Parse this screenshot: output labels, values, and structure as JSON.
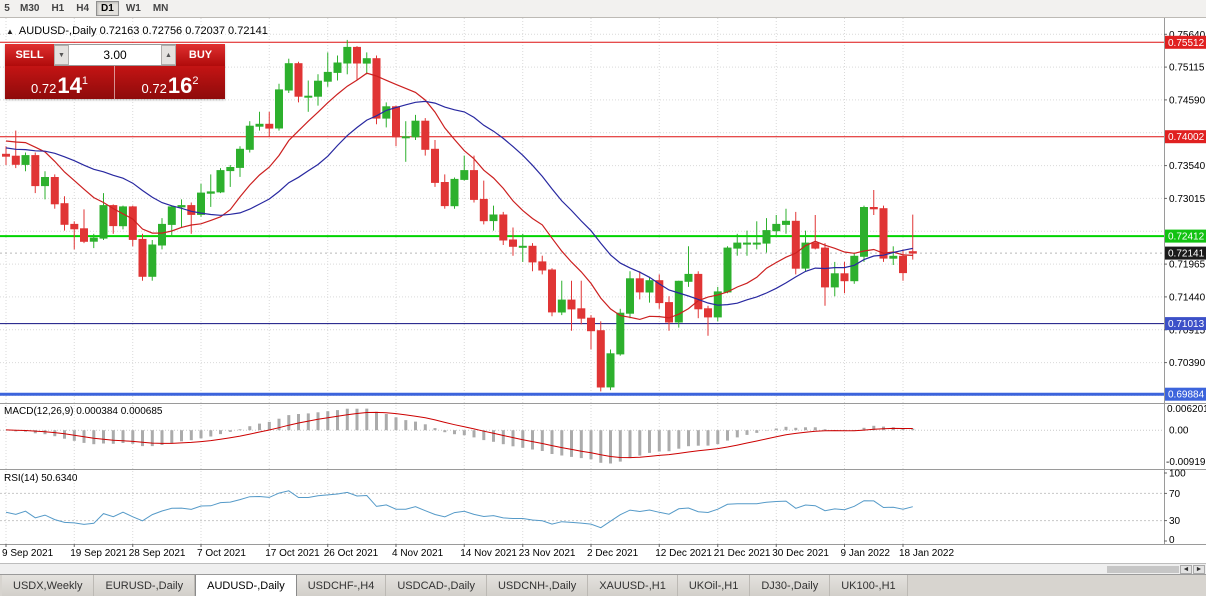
{
  "toolbar": {
    "timeframes": [
      {
        "label": "5",
        "active": false
      },
      {
        "label": "M30",
        "active": false
      },
      {
        "label": "H1",
        "active": false
      },
      {
        "label": "H4",
        "active": false
      },
      {
        "label": "D1",
        "active": true
      },
      {
        "label": "W1",
        "active": false
      },
      {
        "label": "MN",
        "active": false
      }
    ]
  },
  "header": {
    "collapse_icon": "▲",
    "symbol": "AUDUSD-,Daily",
    "open": "0.72163",
    "high": "0.72756",
    "low": "0.72037",
    "close": "0.72141",
    "title_line": "AUDUSD-,Daily 0.72163 0.72756 0.72037 0.72141"
  },
  "one_click": {
    "sell_label": "SELL",
    "buy_label": "BUY",
    "volume": "3.00",
    "volume_down_icon": "▼",
    "volume_up_icon": "▲",
    "sell_price": {
      "base": "0.72",
      "big": "14",
      "sup": "1"
    },
    "buy_price": {
      "base": "0.72",
      "big": "16",
      "sup": "2"
    }
  },
  "price_axis": {
    "labels": [
      {
        "text": "0.75640",
        "price": 0.7564
      },
      {
        "text": "0.75115",
        "price": 0.75115
      },
      {
        "text": "0.74590",
        "price": 0.7459
      },
      {
        "text": "0.73540",
        "price": 0.7354
      },
      {
        "text": "0.73015",
        "price": 0.73015
      },
      {
        "text": "0.71965",
        "price": 0.71965
      },
      {
        "text": "0.71440",
        "price": 0.7144
      },
      {
        "text": "0.70915",
        "price": 0.70915
      },
      {
        "text": "0.70390",
        "price": 0.7039
      }
    ],
    "grid_prices": [
      0.7564,
      0.75115,
      0.7459,
      0.74065,
      0.7354,
      0.73015,
      0.7249,
      0.71965,
      0.7144,
      0.70915,
      0.7039,
      0.69865
    ],
    "badges": [
      {
        "text": "0.75512",
        "price": 0.75512,
        "color": "#e02020"
      },
      {
        "text": "0.74002",
        "price": 0.74002,
        "color": "#e02020"
      },
      {
        "text": "0.72412",
        "price": 0.72412,
        "color": "#12c212"
      },
      {
        "text": "0.72141",
        "price": 0.72141,
        "color": "#1a1a1a"
      },
      {
        "text": "0.71013",
        "price": 0.71013,
        "color": "#3c50c8"
      },
      {
        "text": "0.69884",
        "price": 0.69884,
        "color": "#3c64dc"
      }
    ]
  },
  "levels": [
    {
      "price": 0.75512,
      "color": "#dd1111",
      "width": 1
    },
    {
      "price": 0.74002,
      "color": "#dd1111",
      "width": 1
    },
    {
      "price": 0.72412,
      "color": "#00d400",
      "width": 2
    },
    {
      "price": 0.71013,
      "color": "#101080",
      "width": 1
    },
    {
      "price": 0.69884,
      "color": "#3c64dc",
      "width": 3
    }
  ],
  "bid_line": {
    "price": 0.72141,
    "color": "#b8b8b8"
  },
  "chart_data": {
    "type": "candlestick",
    "symbol": "AUDUSD-",
    "timeframe": "Daily",
    "last_ohlc": {
      "open": 0.72163,
      "high": 0.72756,
      "low": 0.72037,
      "close": 0.72141
    },
    "price_axis_range": [
      0.6976,
      0.759
    ],
    "colors": {
      "up": "#2db02d",
      "down": "#e03535",
      "grid": "#d9d9d9",
      "macd_hist": "#ababab",
      "macd_signal": "#cc0000",
      "rsi_line": "#559ac8"
    },
    "moving_averages": [
      {
        "period": 10,
        "color": "#cc2020"
      },
      {
        "period": 20,
        "color": "#2828a0"
      }
    ],
    "seed_closes": [
      0.7395,
      0.74,
      0.738,
      0.736,
      0.735,
      0.736,
      0.737,
      0.738,
      0.7375,
      0.737,
      0.7368,
      0.7372,
      0.738,
      0.7395,
      0.741,
      0.7445,
      0.743,
      0.739,
      0.737,
      0.7372
    ],
    "dates": [
      "2021-09-09",
      "2021-09-10",
      "2021-09-13",
      "2021-09-14",
      "2021-09-15",
      "2021-09-16",
      "2021-09-17",
      "2021-09-20",
      "2021-09-21",
      "2021-09-22",
      "2021-09-23",
      "2021-09-24",
      "2021-09-27",
      "2021-09-28",
      "2021-09-29",
      "2021-09-30",
      "2021-10-01",
      "2021-10-04",
      "2021-10-05",
      "2021-10-06",
      "2021-10-07",
      "2021-10-08",
      "2021-10-11",
      "2021-10-12",
      "2021-10-13",
      "2021-10-14",
      "2021-10-15",
      "2021-10-18",
      "2021-10-19",
      "2021-10-20",
      "2021-10-21",
      "2021-10-22",
      "2021-10-25",
      "2021-10-26",
      "2021-10-27",
      "2021-10-28",
      "2021-10-29",
      "2021-11-01",
      "2021-11-02",
      "2021-11-03",
      "2021-11-04",
      "2021-11-05",
      "2021-11-08",
      "2021-11-09",
      "2021-11-10",
      "2021-11-11",
      "2021-11-12",
      "2021-11-15",
      "2021-11-16",
      "2021-11-17",
      "2021-11-18",
      "2021-11-19",
      "2021-11-22",
      "2021-11-23",
      "2021-11-24",
      "2021-11-25",
      "2021-11-26",
      "2021-11-29",
      "2021-11-30",
      "2021-12-01",
      "2021-12-02",
      "2021-12-03",
      "2021-12-06",
      "2021-12-07",
      "2021-12-08",
      "2021-12-09",
      "2021-12-10",
      "2021-12-13",
      "2021-12-14",
      "2021-12-15",
      "2021-12-16",
      "2021-12-17",
      "2021-12-20",
      "2021-12-21",
      "2021-12-22",
      "2021-12-23",
      "2021-12-27",
      "2021-12-28",
      "2021-12-29",
      "2021-12-30",
      "2021-12-31",
      "2022-01-03",
      "2022-01-04",
      "2022-01-05",
      "2022-01-06",
      "2022-01-07",
      "2022-01-10",
      "2022-01-11",
      "2022-01-12",
      "2022-01-13",
      "2022-01-14",
      "2022-01-17",
      "2022-01-18",
      "2022-01-19"
    ],
    "ohlc": [
      [
        0.7372,
        0.7385,
        0.7355,
        0.7369
      ],
      [
        0.7369,
        0.741,
        0.735,
        0.7356
      ],
      [
        0.7356,
        0.7375,
        0.7345,
        0.737
      ],
      [
        0.737,
        0.7375,
        0.731,
        0.7322
      ],
      [
        0.7322,
        0.7345,
        0.73,
        0.7335
      ],
      [
        0.7335,
        0.734,
        0.7285,
        0.7293
      ],
      [
        0.7293,
        0.7305,
        0.725,
        0.726
      ],
      [
        0.726,
        0.7265,
        0.722,
        0.7253
      ],
      [
        0.7253,
        0.7284,
        0.723,
        0.7233
      ],
      [
        0.7233,
        0.7245,
        0.7222,
        0.7238
      ],
      [
        0.7238,
        0.731,
        0.7235,
        0.729
      ],
      [
        0.729,
        0.7292,
        0.7245,
        0.7258
      ],
      [
        0.7258,
        0.729,
        0.7252,
        0.7288
      ],
      [
        0.7288,
        0.729,
        0.7225,
        0.7236
      ],
      [
        0.7236,
        0.7245,
        0.717,
        0.7177
      ],
      [
        0.7177,
        0.7235,
        0.717,
        0.7227
      ],
      [
        0.7227,
        0.727,
        0.722,
        0.726
      ],
      [
        0.726,
        0.729,
        0.724,
        0.7288
      ],
      [
        0.7288,
        0.73,
        0.7255,
        0.729
      ],
      [
        0.729,
        0.7295,
        0.7245,
        0.7276
      ],
      [
        0.7276,
        0.7325,
        0.7272,
        0.731
      ],
      [
        0.731,
        0.734,
        0.7288,
        0.7312
      ],
      [
        0.7312,
        0.735,
        0.731,
        0.7346
      ],
      [
        0.7346,
        0.7355,
        0.732,
        0.7351
      ],
      [
        0.7351,
        0.7385,
        0.7336,
        0.738
      ],
      [
        0.738,
        0.7425,
        0.7375,
        0.7417
      ],
      [
        0.7417,
        0.744,
        0.741,
        0.742
      ],
      [
        0.742,
        0.744,
        0.74,
        0.7414
      ],
      [
        0.7414,
        0.7485,
        0.741,
        0.7475
      ],
      [
        0.7475,
        0.7525,
        0.747,
        0.7517
      ],
      [
        0.7517,
        0.752,
        0.7455,
        0.7465
      ],
      [
        0.7465,
        0.749,
        0.744,
        0.7465
      ],
      [
        0.7465,
        0.75,
        0.745,
        0.7489
      ],
      [
        0.7489,
        0.7535,
        0.748,
        0.7503
      ],
      [
        0.7503,
        0.753,
        0.749,
        0.7518
      ],
      [
        0.7518,
        0.7555,
        0.75,
        0.7543
      ],
      [
        0.7543,
        0.7545,
        0.749,
        0.7518
      ],
      [
        0.7518,
        0.7535,
        0.75,
        0.7525
      ],
      [
        0.7525,
        0.753,
        0.742,
        0.743
      ],
      [
        0.743,
        0.7455,
        0.7415,
        0.7448
      ],
      [
        0.7448,
        0.745,
        0.7385,
        0.74
      ],
      [
        0.74,
        0.7425,
        0.736,
        0.74
      ],
      [
        0.74,
        0.7435,
        0.7395,
        0.7425
      ],
      [
        0.7425,
        0.743,
        0.737,
        0.738
      ],
      [
        0.738,
        0.7395,
        0.732,
        0.7327
      ],
      [
        0.7327,
        0.734,
        0.7285,
        0.729
      ],
      [
        0.729,
        0.7335,
        0.7285,
        0.7332
      ],
      [
        0.7332,
        0.737,
        0.733,
        0.7346
      ],
      [
        0.7346,
        0.737,
        0.7295,
        0.73
      ],
      [
        0.73,
        0.733,
        0.726,
        0.7266
      ],
      [
        0.7266,
        0.729,
        0.725,
        0.7275
      ],
      [
        0.7275,
        0.728,
        0.7227,
        0.7235
      ],
      [
        0.7235,
        0.7255,
        0.721,
        0.7225
      ],
      [
        0.7225,
        0.7245,
        0.72,
        0.7225
      ],
      [
        0.7225,
        0.723,
        0.7185,
        0.72
      ],
      [
        0.72,
        0.721,
        0.718,
        0.7187
      ],
      [
        0.7187,
        0.719,
        0.7113,
        0.712
      ],
      [
        0.712,
        0.717,
        0.7115,
        0.7139
      ],
      [
        0.7139,
        0.717,
        0.709,
        0.7125
      ],
      [
        0.7125,
        0.717,
        0.71,
        0.711
      ],
      [
        0.711,
        0.7115,
        0.706,
        0.709
      ],
      [
        0.709,
        0.7105,
        0.6993,
        0.7
      ],
      [
        0.7,
        0.706,
        0.6995,
        0.7053
      ],
      [
        0.7053,
        0.7125,
        0.705,
        0.7118
      ],
      [
        0.7118,
        0.7185,
        0.711,
        0.7173
      ],
      [
        0.7173,
        0.7185,
        0.714,
        0.7152
      ],
      [
        0.7152,
        0.7175,
        0.7135,
        0.717
      ],
      [
        0.717,
        0.718,
        0.7125,
        0.7135
      ],
      [
        0.7135,
        0.7145,
        0.709,
        0.7104
      ],
      [
        0.7104,
        0.717,
        0.7095,
        0.7169
      ],
      [
        0.7169,
        0.7225,
        0.716,
        0.718
      ],
      [
        0.718,
        0.7185,
        0.711,
        0.7125
      ],
      [
        0.7125,
        0.713,
        0.7082,
        0.7112
      ],
      [
        0.7112,
        0.716,
        0.7105,
        0.7152
      ],
      [
        0.7152,
        0.7225,
        0.715,
        0.7222
      ],
      [
        0.7222,
        0.7245,
        0.721,
        0.723
      ],
      [
        0.723,
        0.725,
        0.721,
        0.723
      ],
      [
        0.723,
        0.7265,
        0.722,
        0.723
      ],
      [
        0.723,
        0.727,
        0.7215,
        0.725
      ],
      [
        0.725,
        0.7275,
        0.724,
        0.726
      ],
      [
        0.726,
        0.7285,
        0.7245,
        0.7265
      ],
      [
        0.7265,
        0.728,
        0.718,
        0.719
      ],
      [
        0.719,
        0.725,
        0.7185,
        0.723
      ],
      [
        0.723,
        0.7275,
        0.722,
        0.7222
      ],
      [
        0.7222,
        0.723,
        0.713,
        0.716
      ],
      [
        0.716,
        0.72,
        0.7145,
        0.7181
      ],
      [
        0.7181,
        0.72,
        0.715,
        0.717
      ],
      [
        0.717,
        0.7215,
        0.7165,
        0.7209
      ],
      [
        0.7209,
        0.729,
        0.72,
        0.7287
      ],
      [
        0.7287,
        0.7315,
        0.7275,
        0.7285
      ],
      [
        0.7285,
        0.729,
        0.72,
        0.7206
      ],
      [
        0.7206,
        0.7225,
        0.7195,
        0.7209
      ],
      [
        0.7209,
        0.722,
        0.717,
        0.7183
      ],
      [
        0.72163,
        0.72756,
        0.72037,
        0.72141
      ]
    ],
    "x_labels": [
      {
        "text": "9 Sep 2021",
        "i": 0
      },
      {
        "text": "19 Sep 2021",
        "i": 7
      },
      {
        "text": "28 Sep 2021",
        "i": 13
      },
      {
        "text": "7 Oct 2021",
        "i": 20
      },
      {
        "text": "17 Oct 2021",
        "i": 27
      },
      {
        "text": "26 Oct 2021",
        "i": 33
      },
      {
        "text": "4 Nov 2021",
        "i": 40
      },
      {
        "text": "14 Nov 2021",
        "i": 47
      },
      {
        "text": "23 Nov 2021",
        "i": 53
      },
      {
        "text": "2 Dec 2021",
        "i": 60
      },
      {
        "text": "12 Dec 2021",
        "i": 67
      },
      {
        "text": "21 Dec 2021",
        "i": 73
      },
      {
        "text": "30 Dec 2021",
        "i": 79
      },
      {
        "text": "9 Jan 2022",
        "i": 86
      },
      {
        "text": "18 Jan 2022",
        "i": 92
      }
    ]
  },
  "indicators": {
    "macd": {
      "text": "MACD(12,26,9) 0.000384 0.000685",
      "fast": 12,
      "slow": 26,
      "signal": 9,
      "value": "0.000384",
      "signal_value": "0.000685",
      "range": [
        -0.00919,
        0.006201
      ],
      "axis_top": "0.006201",
      "axis_zero": "0.00",
      "axis_bottom": "-0.00919"
    },
    "rsi": {
      "text": "RSI(14) 50.6340",
      "period": 14,
      "value": "50.6340",
      "axis": [
        "100",
        "70",
        "30",
        "0"
      ],
      "levels": [
        70,
        30
      ]
    }
  },
  "scrollbar": {
    "left_arrow": "◄",
    "right_arrow": "►"
  },
  "tabs": [
    {
      "label": "USDX,Weekly",
      "active": false
    },
    {
      "label": "EURUSD-,Daily",
      "active": false
    },
    {
      "label": "AUDUSD-,Daily",
      "active": true
    },
    {
      "label": "USDCHF-,H4",
      "active": false
    },
    {
      "label": "USDCAD-,Daily",
      "active": false
    },
    {
      "label": "USDCNH-,Daily",
      "active": false
    },
    {
      "label": "XAUUSD-,H1",
      "active": false
    },
    {
      "label": "UKOil-,H1",
      "active": false
    },
    {
      "label": "DJ30-,Daily",
      "active": false
    },
    {
      "label": "UK100-,H1",
      "active": false
    }
  ]
}
